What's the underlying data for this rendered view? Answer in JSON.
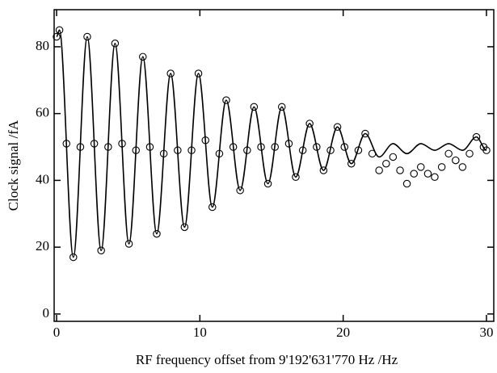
{
  "chart_data": {
    "type": "line",
    "xlabel": "RF frequency offset from 9'192'631'770 Hz /Hz",
    "ylabel": "Clock signal /fA",
    "xlim": [
      -0.17,
      30.51
    ],
    "ylim": [
      -2.2,
      91.1
    ],
    "xticks": [
      0,
      10,
      20,
      30
    ],
    "yticks": [
      0,
      20,
      40,
      60,
      80
    ],
    "series": [
      {
        "style": "markers",
        "color": "#000000",
        "x": [
          0,
          0.2,
          0.69,
          1.17,
          1.66,
          2.14,
          2.63,
          3.11,
          3.6,
          4.08,
          4.57,
          5.05,
          5.54,
          6.02,
          6.51,
          6.99,
          7.48,
          7.96,
          8.45,
          8.93,
          9.42,
          9.9,
          10.39,
          10.87,
          11.36,
          11.84,
          12.33,
          12.81,
          13.3,
          13.78,
          14.27,
          14.75,
          15.24,
          15.72,
          16.21,
          16.69,
          17.18,
          17.66,
          18.15,
          18.63,
          19.12,
          19.6,
          20.09,
          20.57,
          21.06,
          21.54,
          22.03,
          22.51,
          23.0,
          23.48,
          23.97,
          24.45,
          24.94,
          25.42,
          25.91,
          26.39,
          26.88,
          27.36,
          27.85,
          28.33,
          28.82,
          29.3,
          29.8,
          30
        ],
        "values": [
          83,
          85,
          51,
          17,
          50,
          83,
          51,
          19,
          50,
          81,
          51,
          21,
          49,
          77,
          50,
          24,
          48,
          72,
          49,
          26,
          49,
          72,
          52,
          32,
          48,
          64,
          50,
          37,
          49,
          62,
          50,
          39,
          50,
          62,
          51,
          41,
          49,
          57,
          50,
          43,
          49,
          56,
          50,
          45,
          49,
          54,
          48,
          43,
          45,
          47,
          43,
          39,
          42,
          44,
          42,
          41,
          44,
          48,
          46,
          44,
          48,
          53,
          50,
          49
        ]
      },
      {
        "style": "line",
        "color": "#000000",
        "x": [
          0,
          0.2,
          1.17,
          2.14,
          3.11,
          4.08,
          5.05,
          6.02,
          6.99,
          7.96,
          8.93,
          9.9,
          10.87,
          11.84,
          12.81,
          13.78,
          14.75,
          15.72,
          16.69,
          17.66,
          18.63,
          19.6,
          20.57,
          21.54,
          22.51,
          23.48,
          24.45,
          25.42,
          26.39,
          27.36,
          28.33,
          29.3,
          30
        ],
        "values": [
          83,
          85,
          17,
          83,
          19,
          81,
          21,
          77,
          24,
          72,
          26,
          72,
          32,
          64,
          37,
          62,
          39,
          62,
          41,
          57,
          43,
          56,
          45,
          54,
          47,
          51,
          48,
          51,
          49,
          51,
          49,
          53,
          49
        ]
      }
    ]
  }
}
